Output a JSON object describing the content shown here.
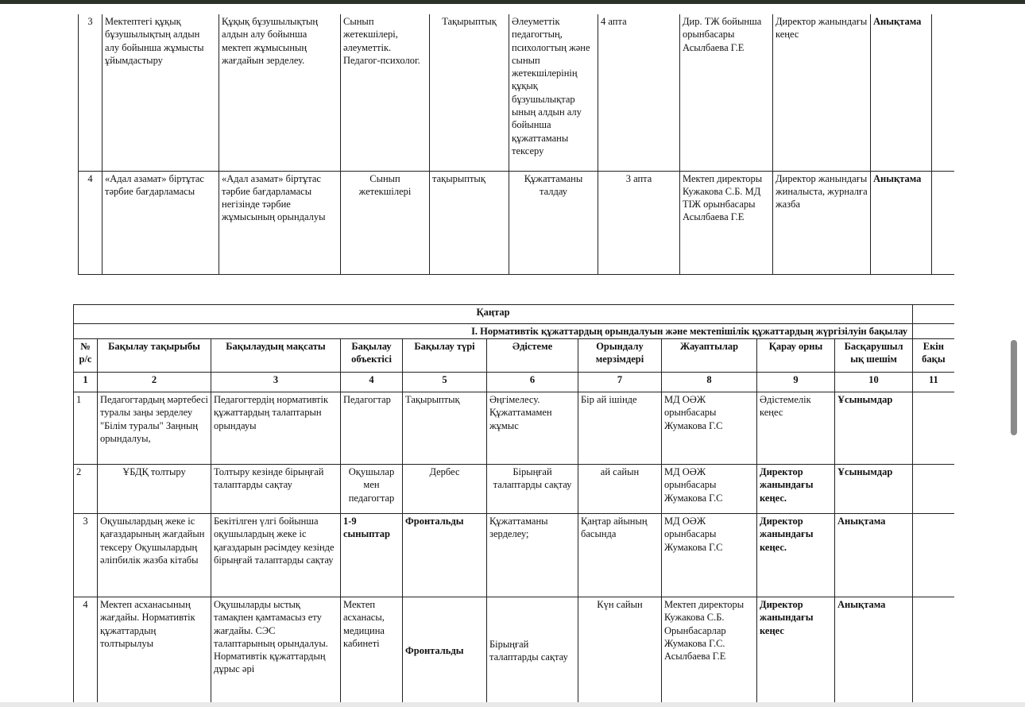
{
  "table1": {
    "rows": [
      {
        "no": "3",
        "topic": "Мектептегі құқық бұзушылықтың алдын алу бойынша жұмысты ұйымдастыру",
        "goal": "Құқық бұзушылықтың алдын алу бойынша мектеп жұмысының жағдайын зерделеу.",
        "object": "Сынып жетекшілері, әлеуметтік. Педагог-психолог.",
        "type": "Тақырыптық",
        "method": "Әлеуметтік педагогтың, психологтың және сынып жетекшілерінің құқық бұзушылықтар ының алдын алу бойынша құжаттаманы тексеру",
        "term": "4 апта",
        "responsible": "Дир. ТЖ бойынша орынбасары Асылбаева Г.Е",
        "place": "Директор жанындағы кеңес",
        "decision": "Анықтама"
      },
      {
        "no": "4",
        "topic": "«Адал азамат» біртұтас тәрбие бағдарламасы",
        "goal": "«Адал азамат» біртұтас тәрбие бағдарламасы негізінде тәрбие жұмысының орындалуы",
        "object": "Сынып жетекшілері",
        "type": "тақырыптық",
        "method": "Құжаттаманы талдау",
        "term": "3 апта",
        "responsible": "Мектеп директоры Кужакова С.Б. МД ТІЖ орынбасары Асылбаева Г.Е",
        "place": "Директор жанындағы жиналыста, журналға жазба",
        "decision": "Анықтама"
      }
    ]
  },
  "table2": {
    "month": "Қаңтар",
    "section": "І. Нормативтік құжаттардың орындалуын және мектепішілік құжаттардың жүргізілуін  бақылау",
    "headers": [
      "№ р/с",
      "Бақылау тақырыбы",
      "Бақылаудың мақсаты",
      "Бақылау объектісі",
      "Бақылау түрі",
      "Әдістеме",
      "Орындалу мерзімдері",
      "Жауаптылар",
      "Қарау орны",
      "Басқарушыл ық шешім",
      "Екін бақы"
    ],
    "numbers": [
      "1",
      "2",
      "3",
      "4",
      "5",
      "6",
      "7",
      "8",
      "9",
      "10",
      "11"
    ],
    "rows": [
      {
        "no": "1",
        "topic": "Педагогтардың мәртебесі туралы заңы зерделеу \"Білім туралы\" Заңның орындалуы,",
        "goal": "Педагогтердің нормативтік құжаттардың талаптарын орындауы",
        "object": "Педагогтар",
        "type": "Тақырыптық",
        "method": "Әңгімелесу. Құжаттамамен жұмыс",
        "term": "Бір ай ішінде",
        "responsible": "МД ОӘЖ орынбасары Жумакова Г.С",
        "place": "Әдістемелік кеңес",
        "decision": "Ұсынымдар"
      },
      {
        "no": "2",
        "topic": "ҰБДҚ толтыру",
        "goal": "Толтыру кезінде бірыңғай талаптарды сақтау",
        "object": "Оқушылар мен педагогтар",
        "type": "Дербес",
        "method": "Бірыңғай талаптарды сақтау",
        "term": "ай сайын",
        "responsible": "МД ОӘЖ орынбасары Жумакова Г.С",
        "place": "Директор жанындағы кеңес.",
        "decision": "Ұсынымдар"
      },
      {
        "no": "3",
        "topic": "Оқушылардың жеке іс қағаздарының жағдайын тексеру Оқушылардың әліпбилік жазба кітабы",
        "goal": "Бекітілген үлгі бойынша оқушылардың жеке іс қағаздарын рәсімдеу кезінде бірыңғай талаптарды сақтау",
        "object": "1-9 сыныптар",
        "type": "Фронтальды",
        "method": "Құжаттаманы зерделеу;",
        "term": "Қаңтар айының басында",
        "responsible": "МД ОӘЖ орынбасары Жумакова Г.С",
        "place": "Директор жанындағы кеңес.",
        "decision": "Анықтама"
      },
      {
        "no": "4",
        "topic": "Мектеп асханасының жағдайы. Нормативтік құжаттардың толтырылуы",
        "goal": "Оқушыларды ыстық тамақпен қамтамасыз ету жағдайы. СЭС талаптарының орындалуы. Нормативтік құжаттардың дұрыс әрі",
        "object": "Мектеп асханасы, медицина кабинеті",
        "type": "Фронтальды",
        "method": "Бірыңғай талаптарды сақтау",
        "term": "Күн сайын",
        "responsible": "Мектеп директоры Кужакова С.Б. Орынбасарлар Жумакова Г.С. Асылбаева Г.Е",
        "place": "Директор жанындағы кеңес",
        "decision": "Анықтама"
      }
    ]
  }
}
